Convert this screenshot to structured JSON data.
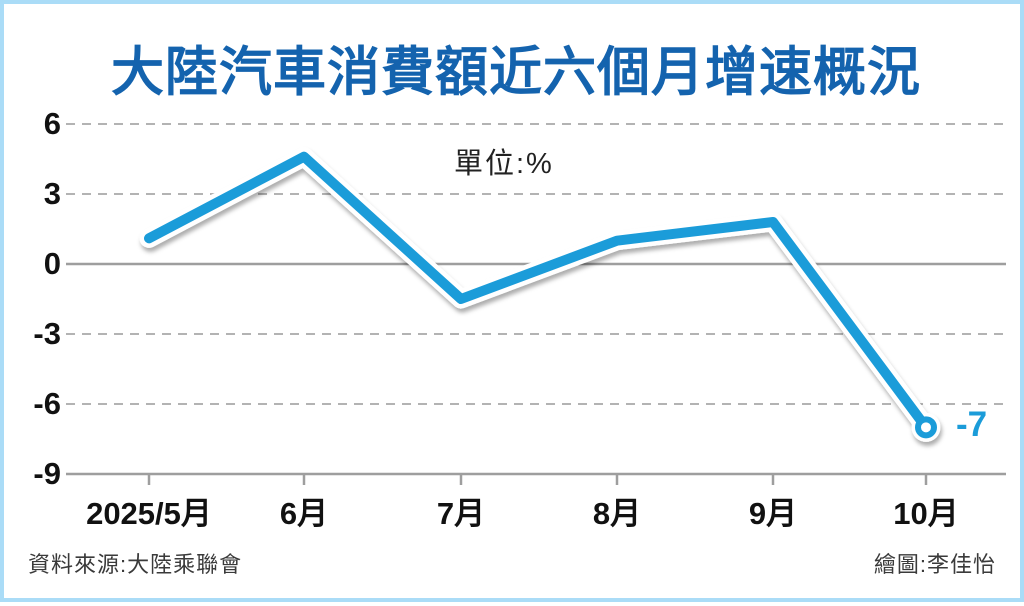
{
  "chart_data": {
    "type": "line",
    "title": "大陸汽車消費額近六個月增速概況",
    "unit_label": "單位:%",
    "categories": [
      "2025/5月",
      "6月",
      "7月",
      "8月",
      "9月",
      "10月"
    ],
    "values": [
      1.1,
      4.6,
      -1.5,
      1.0,
      1.8,
      -7
    ],
    "yticks": [
      6,
      3,
      0,
      -3,
      -6,
      -9
    ],
    "ylim": [
      -9,
      6
    ],
    "grid": "horizontal gridlines: dashed at 6/3/-3/-6, solid at 0 and bottom axis (-9)",
    "legend": "none",
    "end_point_label": "-7",
    "xlabel": "",
    "ylabel": "單位:%"
  },
  "footer": {
    "source": "資料來源:大陸乘聯會",
    "credit": "繪圖:李佳怡"
  },
  "colors": {
    "line_blue": "#1b9cd9",
    "title_blue": "#1463ae",
    "frame_border_blue": "#aadcf7",
    "gridline_gray": "#b3b3b3",
    "axis_gray": "#9e9e9e",
    "tick_label_black": "#111111"
  }
}
